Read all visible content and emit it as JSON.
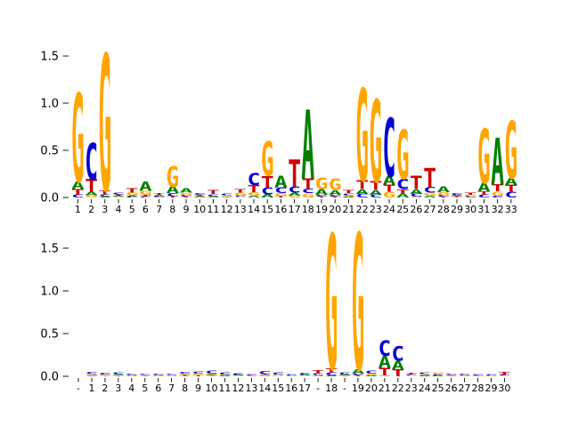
{
  "figure": {
    "background": "#ffffff"
  },
  "colors": {
    "A": "#008000",
    "C": "#0000d6",
    "G": "#ffa500",
    "T": "#d00000"
  },
  "chart_data": [
    {
      "type": "sequence-logo",
      "panel": "top",
      "title": "",
      "xlabel": "",
      "ylabel": "",
      "ylim": [
        0,
        1.75
      ],
      "grid": false,
      "legend": "none",
      "yticks": [
        "0.0",
        "0.5",
        "1.0",
        "1.5"
      ],
      "xlabels": [
        "1",
        "2",
        "3",
        "4",
        "5",
        "6",
        "7",
        "8",
        "9",
        "10",
        "11",
        "12",
        "13",
        "14",
        "15",
        "16",
        "17",
        "18",
        "19",
        "20",
        "21",
        "22",
        "23",
        "24",
        "25",
        "26",
        "27",
        "28",
        "29",
        "30",
        "31",
        "32",
        "33"
      ],
      "stacks": [
        [
          [
            "C",
            0.03
          ],
          [
            "T",
            0.06
          ],
          [
            "A",
            0.08
          ],
          [
            "G",
            0.94
          ]
        ],
        [
          [
            "G",
            0.025
          ],
          [
            "A",
            0.036
          ],
          [
            "T",
            0.134
          ],
          [
            "C",
            0.385
          ]
        ],
        [
          [
            "A",
            0.012
          ],
          [
            "C",
            0.02
          ],
          [
            "T",
            0.045
          ],
          [
            "G",
            1.45
          ]
        ],
        [
          [
            "G",
            0.008
          ],
          [
            "A",
            0.01
          ],
          [
            "T",
            0.014
          ],
          [
            "C",
            0.02
          ]
        ],
        [
          [
            "C",
            0.01
          ],
          [
            "A",
            0.014
          ],
          [
            "G",
            0.028
          ],
          [
            "T",
            0.048
          ]
        ],
        [
          [
            "C",
            0.01
          ],
          [
            "T",
            0.02
          ],
          [
            "G",
            0.04
          ],
          [
            "A",
            0.1
          ]
        ],
        [
          [
            "G",
            0.006
          ],
          [
            "C",
            0.009
          ],
          [
            "A",
            0.012
          ],
          [
            "T",
            0.02
          ]
        ],
        [
          [
            "T",
            0.015
          ],
          [
            "C",
            0.03
          ],
          [
            "A",
            0.07
          ],
          [
            "G",
            0.22
          ]
        ],
        [
          [
            "T",
            0.01
          ],
          [
            "C",
            0.015
          ],
          [
            "G",
            0.025
          ],
          [
            "A",
            0.048
          ]
        ],
        [
          [
            "G",
            0.006
          ],
          [
            "A",
            0.01
          ],
          [
            "T",
            0.014
          ],
          [
            "C",
            0.02
          ]
        ],
        [
          [
            "G",
            0.006
          ],
          [
            "A",
            0.01
          ],
          [
            "C",
            0.02
          ],
          [
            "T",
            0.045
          ]
        ],
        [
          [
            "T",
            0.005
          ],
          [
            "A",
            0.008
          ],
          [
            "G",
            0.012
          ],
          [
            "C",
            0.016
          ]
        ],
        [
          [
            "A",
            0.008
          ],
          [
            "C",
            0.012
          ],
          [
            "G",
            0.03
          ],
          [
            "T",
            0.036
          ]
        ],
        [
          [
            "A",
            0.02
          ],
          [
            "G",
            0.035
          ],
          [
            "T",
            0.075
          ],
          [
            "C",
            0.13
          ]
        ],
        [
          [
            "A",
            0.035
          ],
          [
            "C",
            0.07
          ],
          [
            "T",
            0.125
          ],
          [
            "G",
            0.36
          ]
        ],
        [
          [
            "T",
            0.015
          ],
          [
            "G",
            0.03
          ],
          [
            "C",
            0.06
          ],
          [
            "A",
            0.13
          ]
        ],
        [
          [
            "G",
            0.02
          ],
          [
            "A",
            0.03
          ],
          [
            "C",
            0.065
          ],
          [
            "T",
            0.29
          ]
        ],
        [
          [
            "G",
            0.045
          ],
          [
            "C",
            0.05
          ],
          [
            "T",
            0.11
          ],
          [
            "A",
            0.73
          ]
        ],
        [
          [
            "T",
            0.01
          ],
          [
            "C",
            0.02
          ],
          [
            "A",
            0.06
          ],
          [
            "G",
            0.12
          ]
        ],
        [
          [
            "T",
            0.01
          ],
          [
            "C",
            0.02
          ],
          [
            "A",
            0.05
          ],
          [
            "G",
            0.12
          ]
        ],
        [
          [
            "A",
            0.01
          ],
          [
            "G",
            0.015
          ],
          [
            "C",
            0.02
          ],
          [
            "T",
            0.03
          ]
        ],
        [
          [
            "C",
            0.04
          ],
          [
            "A",
            0.05
          ],
          [
            "T",
            0.09
          ],
          [
            "G",
            0.98
          ]
        ],
        [
          [
            "C",
            0.03
          ],
          [
            "A",
            0.05
          ],
          [
            "T",
            0.09
          ],
          [
            "G",
            0.87
          ]
        ],
        [
          [
            "G",
            0.06
          ],
          [
            "T",
            0.075
          ],
          [
            "A",
            0.09
          ],
          [
            "C",
            0.62
          ]
        ],
        [
          [
            "A",
            0.04
          ],
          [
            "T",
            0.05
          ],
          [
            "C",
            0.11
          ],
          [
            "G",
            0.52
          ]
        ],
        [
          [
            "G",
            0.01
          ],
          [
            "C",
            0.03
          ],
          [
            "A",
            0.05
          ],
          [
            "T",
            0.14
          ]
        ],
        [
          [
            "A",
            0.02
          ],
          [
            "G",
            0.03
          ],
          [
            "C",
            0.06
          ],
          [
            "T",
            0.2
          ]
        ],
        [
          [
            "T",
            0.01
          ],
          [
            "C",
            0.015
          ],
          [
            "G",
            0.03
          ],
          [
            "A",
            0.06
          ]
        ],
        [
          [
            "G",
            0.005
          ],
          [
            "T",
            0.01
          ],
          [
            "A",
            0.015
          ],
          [
            "C",
            0.02
          ]
        ],
        [
          [
            "A",
            0.005
          ],
          [
            "C",
            0.01
          ],
          [
            "G",
            0.015
          ],
          [
            "T",
            0.025
          ]
        ],
        [
          [
            "C",
            0.028
          ],
          [
            "T",
            0.035
          ],
          [
            "A",
            0.09
          ],
          [
            "G",
            0.58
          ]
        ],
        [
          [
            "C",
            0.02
          ],
          [
            "G",
            0.045
          ],
          [
            "T",
            0.073
          ],
          [
            "A",
            0.5
          ]
        ],
        [
          [
            "C",
            0.06
          ],
          [
            "T",
            0.07
          ],
          [
            "A",
            0.075
          ],
          [
            "G",
            0.61
          ]
        ]
      ]
    },
    {
      "type": "sequence-logo",
      "panel": "bottom",
      "title": "",
      "xlabel": "",
      "ylabel": "",
      "ylim": [
        0,
        1.75
      ],
      "grid": false,
      "legend": "none",
      "yticks": [
        "0.0",
        "0.5",
        "1.0",
        "1.5"
      ],
      "xlabels": [
        "-",
        "1",
        "2",
        "3",
        "4",
        "5",
        "6",
        "7",
        "8",
        "9",
        "10",
        "11",
        "12",
        "13",
        "14",
        "15",
        "16",
        "17",
        "-",
        "18",
        "-",
        "19",
        "20",
        "21",
        "22",
        "23",
        "24",
        "25",
        "26",
        "27",
        "28",
        "29",
        "30"
      ],
      "stacks": [
        [],
        [
          [
            "T",
            0.005
          ],
          [
            "A",
            0.008
          ],
          [
            "G",
            0.012
          ],
          [
            "C",
            0.025
          ]
        ],
        [
          [
            "T",
            0.008
          ],
          [
            "G",
            0.012
          ],
          [
            "C",
            0.02
          ]
        ],
        [
          [
            "T",
            0.006
          ],
          [
            "G",
            0.008
          ],
          [
            "A",
            0.01
          ],
          [
            "C",
            0.018
          ]
        ],
        [
          [
            "A",
            0.007
          ],
          [
            "G",
            0.01
          ],
          [
            "C",
            0.015
          ]
        ],
        [
          [
            "T",
            0.007
          ],
          [
            "G",
            0.008
          ],
          [
            "C",
            0.015
          ]
        ],
        [
          [
            "A",
            0.006
          ],
          [
            "G",
            0.01
          ],
          [
            "C",
            0.012
          ]
        ],
        [
          [
            "A",
            0.006
          ],
          [
            "G",
            0.008
          ],
          [
            "C",
            0.015
          ]
        ],
        [
          [
            "A",
            0.005
          ],
          [
            "T",
            0.01
          ],
          [
            "G",
            0.015
          ],
          [
            "C",
            0.02
          ]
        ],
        [
          [
            "T",
            0.012
          ],
          [
            "G",
            0.02
          ],
          [
            "C",
            0.025
          ]
        ],
        [
          [
            "T",
            0.008
          ],
          [
            "A",
            0.01
          ],
          [
            "G",
            0.015
          ],
          [
            "C",
            0.03
          ]
        ],
        [
          [
            "A",
            0.01
          ],
          [
            "G",
            0.012
          ],
          [
            "C",
            0.025
          ]
        ],
        [
          [
            "G",
            0.008
          ],
          [
            "A",
            0.01
          ],
          [
            "C",
            0.02
          ]
        ],
        [
          [
            "T",
            0.005
          ],
          [
            "G",
            0.008
          ],
          [
            "C",
            0.012
          ]
        ],
        [
          [
            "A",
            0.005
          ],
          [
            "G",
            0.01
          ],
          [
            "T",
            0.012
          ],
          [
            "C",
            0.03
          ]
        ],
        [
          [
            "A",
            0.008
          ],
          [
            "G",
            0.015
          ],
          [
            "C",
            0.025
          ]
        ],
        [
          [
            "A",
            0.004
          ],
          [
            "G",
            0.006
          ],
          [
            "C",
            0.01
          ]
        ],
        [
          [
            "G",
            0.008
          ],
          [
            "A",
            0.012
          ],
          [
            "C",
            0.02
          ]
        ],
        [
          [
            "A",
            0.005
          ],
          [
            "G",
            0.01
          ],
          [
            "C",
            0.02
          ],
          [
            "T",
            0.03
          ]
        ],
        [
          [
            "A",
            0.01
          ],
          [
            "C",
            0.03
          ],
          [
            "T",
            0.05
          ],
          [
            "G",
            1.58
          ]
        ],
        [
          [
            "T",
            0.005
          ],
          [
            "G",
            0.01
          ],
          [
            "A",
            0.012
          ],
          [
            "C",
            0.02
          ]
        ],
        [
          [
            "T",
            0.01
          ],
          [
            "C",
            0.02
          ],
          [
            "A",
            0.05
          ],
          [
            "G",
            1.6
          ]
        ],
        [
          [
            "A",
            0.01
          ],
          [
            "G",
            0.02
          ],
          [
            "C",
            0.03
          ]
        ],
        [
          [
            "G",
            0.01
          ],
          [
            "T",
            0.09
          ],
          [
            "A",
            0.14
          ],
          [
            "C",
            0.18
          ]
        ],
        [
          [
            "T",
            0.08
          ],
          [
            "A",
            0.1
          ],
          [
            "C",
            0.17
          ]
        ],
        [
          [
            "G",
            0.008
          ],
          [
            "C",
            0.012
          ],
          [
            "T",
            0.02
          ]
        ],
        [
          [
            "A",
            0.01
          ],
          [
            "G",
            0.015
          ],
          [
            "C",
            0.02
          ]
        ],
        [
          [
            "A",
            0.01
          ],
          [
            "C",
            0.015
          ],
          [
            "G",
            0.02
          ]
        ],
        [
          [
            "T",
            0.006
          ],
          [
            "G",
            0.01
          ],
          [
            "C",
            0.015
          ]
        ],
        [
          [
            "A",
            0.006
          ],
          [
            "G",
            0.01
          ],
          [
            "C",
            0.015
          ]
        ],
        [
          [
            "T",
            0.005
          ],
          [
            "G",
            0.008
          ],
          [
            "C",
            0.012
          ]
        ],
        [
          [
            "A",
            0.005
          ],
          [
            "G",
            0.008
          ],
          [
            "C",
            0.012
          ]
        ],
        [
          [
            "G",
            0.008
          ],
          [
            "C",
            0.01
          ],
          [
            "T",
            0.03
          ]
        ]
      ]
    }
  ]
}
